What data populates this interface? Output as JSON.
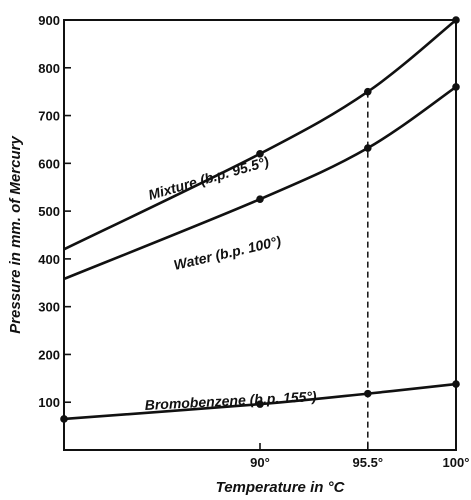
{
  "chart_data": {
    "type": "line",
    "xlabel": "Temperature in °C",
    "ylabel": "Pressure in mm. of Mercury",
    "xlim": [
      80,
      100
    ],
    "ylim": [
      0,
      900
    ],
    "x_ticks": [
      {
        "value": 90,
        "label": "90°"
      },
      {
        "value": 95.5,
        "label": "95.5°"
      },
      {
        "value": 100,
        "label": "100°"
      }
    ],
    "y_ticks": [
      {
        "value": 100,
        "label": "100"
      },
      {
        "value": 200,
        "label": "200"
      },
      {
        "value": 300,
        "label": "300"
      },
      {
        "value": 400,
        "label": "400"
      },
      {
        "value": 500,
        "label": "500"
      },
      {
        "value": 600,
        "label": "600"
      },
      {
        "value": 700,
        "label": "700"
      },
      {
        "value": 800,
        "label": "800"
      },
      {
        "value": 900,
        "label": "900"
      }
    ],
    "grid": false,
    "reference_line": {
      "x": 95.5,
      "style": "dashed"
    },
    "series": [
      {
        "name": "Mixture (b.p. 95.5°)",
        "points": [
          [
            80,
            420
          ],
          [
            90,
            620
          ],
          [
            95.5,
            750
          ],
          [
            100,
            900
          ]
        ],
        "marked_points": [
          [
            90,
            620
          ],
          [
            95.5,
            750
          ],
          [
            100,
            900
          ]
        ]
      },
      {
        "name": "Water (b.p. 100°)",
        "points": [
          [
            80,
            358
          ],
          [
            90,
            525
          ],
          [
            95.5,
            632
          ],
          [
            100,
            760
          ]
        ],
        "marked_points": [
          [
            90,
            525
          ],
          [
            95.5,
            632
          ],
          [
            100,
            760
          ]
        ]
      },
      {
        "name": "Bromobenzene (b.p. 155°)",
        "points": [
          [
            80,
            65
          ],
          [
            90,
            96
          ],
          [
            95.5,
            118
          ],
          [
            100,
            138
          ]
        ],
        "marked_points": [
          [
            80,
            65
          ],
          [
            90,
            96
          ],
          [
            95.5,
            118
          ],
          [
            100,
            138
          ]
        ]
      }
    ]
  }
}
